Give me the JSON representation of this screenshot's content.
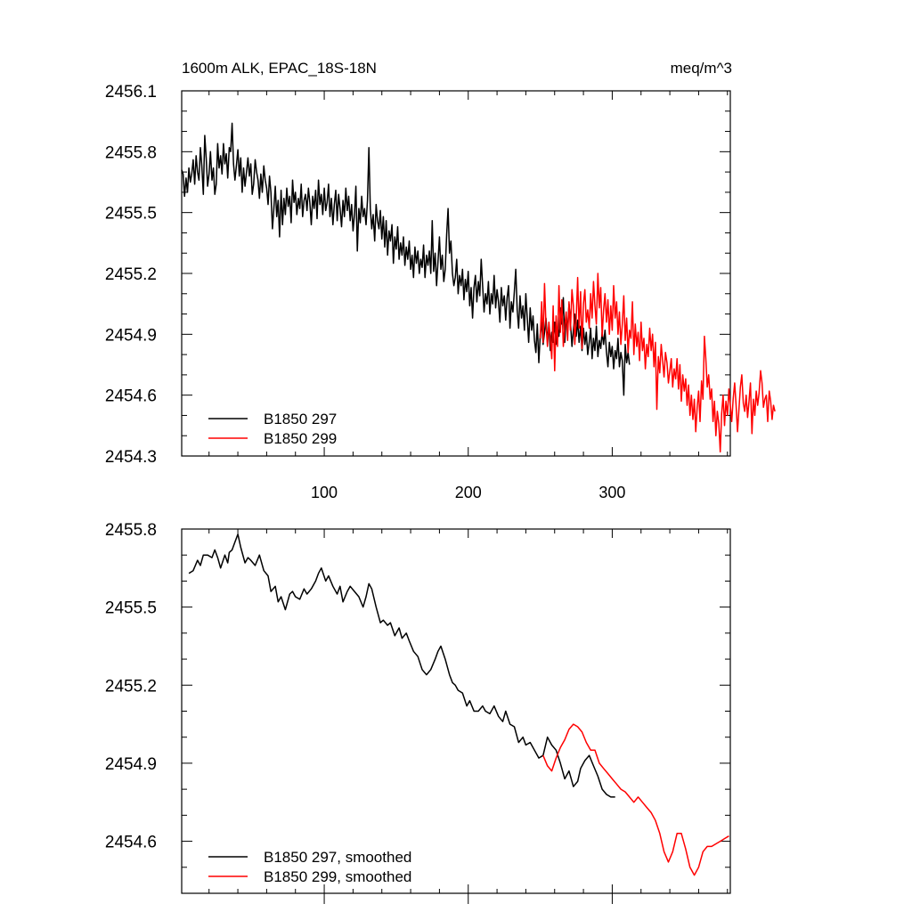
{
  "charts": [
    {
      "title_left": "1600m ALK, EPAC_18S-18N",
      "title_right": "meq/m^3",
      "chart_data": {
        "type": "line",
        "xlim": [
          1,
          382
        ],
        "ylim": [
          2454.3,
          2456.1
        ],
        "x_ticks": [
          100,
          200,
          300
        ],
        "y_ticks": [
          2454.3,
          2454.6,
          2454.9,
          2455.2,
          2455.5,
          2455.8,
          2456.1
        ],
        "legend_position": "bottom-left",
        "series": [
          {
            "name": "B1850 297",
            "color": "#000000",
            "x_start": 1,
            "values": [
              2455.71,
              2455.69,
              2455.58,
              2455.67,
              2455.6,
              2455.72,
              2455.65,
              2455.69,
              2455.76,
              2455.64,
              2455.78,
              2455.7,
              2455.66,
              2455.82,
              2455.73,
              2455.59,
              2455.88,
              2455.77,
              2455.63,
              2455.69,
              2455.8,
              2455.66,
              2455.72,
              2455.59,
              2455.64,
              2455.84,
              2455.72,
              2455.78,
              2455.69,
              2455.84,
              2455.74,
              2455.79,
              2455.67,
              2455.82,
              2455.8,
              2455.94,
              2455.74,
              2455.66,
              2455.73,
              2455.81,
              2455.68,
              2455.77,
              2455.6,
              2455.72,
              2455.63,
              2455.7,
              2455.77,
              2455.68,
              2455.74,
              2455.59,
              2455.64,
              2455.76,
              2455.7,
              2455.66,
              2455.57,
              2455.69,
              2455.6,
              2455.73,
              2455.66,
              2455.62,
              2455.54,
              2455.68,
              2455.6,
              2455.42,
              2455.52,
              2455.63,
              2455.48,
              2455.56,
              2455.38,
              2455.61,
              2455.44,
              2455.57,
              2455.49,
              2455.62,
              2455.53,
              2455.58,
              2455.45,
              2455.66,
              2455.55,
              2455.6,
              2455.49,
              2455.57,
              2455.52,
              2455.64,
              2455.48,
              2455.56,
              2455.59,
              2455.51,
              2455.62,
              2455.55,
              2455.44,
              2455.58,
              2455.52,
              2455.61,
              2455.47,
              2455.66,
              2455.54,
              2455.59,
              2455.49,
              2455.62,
              2455.51,
              2455.55,
              2455.64,
              2455.48,
              2455.57,
              2455.44,
              2455.54,
              2455.61,
              2455.46,
              2455.59,
              2455.52,
              2455.43,
              2455.56,
              2455.48,
              2455.62,
              2455.51,
              2455.58,
              2455.46,
              2455.54,
              2455.41,
              2455.49,
              2455.63,
              2455.31,
              2455.52,
              2455.45,
              2455.58,
              2455.48,
              2455.52,
              2455.44,
              2455.56,
              2455.82,
              2455.52,
              2455.42,
              2455.49,
              2455.36,
              2455.54,
              2455.46,
              2455.42,
              2455.51,
              2455.37,
              2455.48,
              2455.33,
              2455.46,
              2455.29,
              2455.41,
              2455.36,
              2455.44,
              2455.25,
              2455.38,
              2455.32,
              2455.43,
              2455.27,
              2455.35,
              2455.29,
              2455.38,
              2455.24,
              2455.33,
              2455.27,
              2455.36,
              2455.22,
              2455.29,
              2455.18,
              2455.33,
              2455.25,
              2455.31,
              2455.2,
              2455.27,
              2455.23,
              2455.34,
              2455.18,
              2455.29,
              2455.24,
              2455.31,
              2455.2,
              2455.46,
              2455.21,
              2455.3,
              2455.14,
              2455.26,
              2455.38,
              2455.22,
              2455.29,
              2455.16,
              2455.22,
              2455.39,
              2455.52,
              2455.3,
              2455.36,
              2455.2,
              2455.14,
              2455.18,
              2455.27,
              2455.1,
              2455.19,
              2455.14,
              2455.22,
              2455.07,
              2455.17,
              2455.11,
              2455.21,
              2455.04,
              2455.13,
              2454.98,
              2455.13,
              2455.19,
              2455.06,
              2455.16,
              2455.09,
              2455.27,
              2455.14,
              2455.01,
              2455.1,
              2455.05,
              2455.16,
              2455.0,
              2455.1,
              2455.05,
              2455.19,
              2455.03,
              2455.12,
              2455.06,
              2454.96,
              2455.13,
              2455.04,
              2455.09,
              2454.97,
              2455.08,
              2455.14,
              2454.93,
              2455.06,
              2455.01,
              2455.11,
              2455.22,
              2455.02,
              2454.93,
              2455.09,
              2454.98,
              2455.04,
              2454.92,
              2455.1,
              2454.98,
              2454.86,
              2455.03,
              2454.92,
              2454.99,
              2454.87,
              2454.81,
              2454.95,
              2454.76,
              2454.9,
              2454.96,
              2454.85,
              2454.91,
              2454.98,
              2454.87,
              2454.94,
              2454.82,
              2454.91,
              2454.86,
              2454.96,
              2454.85,
              2454.93,
              2454.89,
              2455.03,
              2454.95,
              2455.08,
              2454.86,
              2454.99,
              2454.92,
              2455.05,
              2454.96,
              2454.84,
              2454.92,
              2455.0,
              2454.89,
              2454.97,
              2454.86,
              2454.94,
              2454.82,
              2454.93,
              2454.85,
              2454.91,
              2454.8,
              2454.86,
              2454.93,
              2454.78,
              2454.88,
              2454.82,
              2454.94,
              2454.79,
              2454.87,
              2454.83,
              2454.91,
              2454.85,
              2454.92,
              2454.81,
              2454.74,
              2454.86,
              2454.79,
              2454.84,
              2454.73,
              2454.82,
              2454.78,
              2454.88,
              2454.74,
              2454.81,
              2454.77,
              2454.6,
              2454.85,
              2454.76,
              2454.81,
              2454.75
            ]
          },
          {
            "name": "B1850 299",
            "color": "#ff0000",
            "x_start": 250,
            "values": [
              2454.88,
              2455.06,
              2454.86,
              2455.15,
              2454.95,
              2454.84,
              2454.96,
              2454.88,
              2454.78,
              2455.04,
              2454.72,
              2454.99,
              2454.84,
              2455.14,
              2454.91,
              2455.07,
              2454.84,
              2454.94,
              2455.01,
              2454.87,
              2455.06,
              2454.92,
              2455.12,
              2455.04,
              2454.85,
              2454.98,
              2455.18,
              2454.93,
              2455.11,
              2454.83,
              2455.05,
              2455.12,
              2454.96,
              2455.02,
              2454.93,
              2455.1,
              2454.98,
              2455.16,
              2455.04,
              2454.95,
              2455.2,
              2455.03,
              2455.13,
              2454.89,
              2455.02,
              2455.1,
              2454.96,
              2455.07,
              2454.9,
              2455.04,
              2454.92,
              2455.14,
              2454.98,
              2455.06,
              2454.9,
              2455.01,
              2454.85,
              2454.95,
              2455.09,
              2454.87,
              2454.98,
              2454.81,
              2454.92,
              2454.88,
              2455.06,
              2454.8,
              2454.95,
              2454.84,
              2454.91,
              2454.77,
              2454.96,
              2454.82,
              2454.88,
              2454.73,
              2454.85,
              2454.79,
              2454.93,
              2454.82,
              2454.9,
              2454.74,
              2454.86,
              2454.53,
              2454.79,
              2454.71,
              2454.85,
              2454.77,
              2454.69,
              2454.81,
              2454.76,
              2454.66,
              2454.72,
              2454.78,
              2454.64,
              2454.73,
              2454.68,
              2454.78,
              2454.63,
              2454.75,
              2454.57,
              2454.7,
              2454.62,
              2454.68,
              2454.55,
              2454.65,
              2454.5,
              2454.6,
              2454.48,
              2454.58,
              2454.42,
              2454.54,
              2454.62,
              2454.47,
              2454.67,
              2454.58,
              2454.89,
              2454.78,
              2454.64,
              2454.7,
              2454.58,
              2454.63,
              2454.47,
              2454.57,
              2454.4,
              2454.52,
              2454.46,
              2454.32,
              2454.51,
              2454.6,
              2454.45,
              2454.57,
              2454.5,
              2454.63,
              2454.55,
              2454.47,
              2454.58,
              2454.66,
              2454.55,
              2454.42,
              2454.53,
              2454.64,
              2454.7,
              2454.56,
              2454.52,
              2454.6,
              2454.49,
              2454.57,
              2454.66,
              2454.41,
              2454.58,
              2454.5,
              2454.62,
              2454.55,
              2454.61,
              2454.72,
              2454.66,
              2454.54,
              2454.58,
              2454.6,
              2454.47,
              2454.62,
              2454.57,
              2454.48,
              2454.55,
              2454.52
            ]
          }
        ]
      }
    },
    {
      "title_left": "",
      "title_right": "",
      "chart_data": {
        "type": "line",
        "xlim": [
          1,
          382
        ],
        "ylim": [
          2454.4,
          2455.8
        ],
        "x_ticks": [
          100,
          200,
          300
        ],
        "y_ticks": [
          2454.6,
          2454.9,
          2455.2,
          2455.5,
          2455.8
        ],
        "legend_position": "bottom-left",
        "series": [
          {
            "name": "B1850 297, smoothed",
            "color": "#000000",
            "x": [
              6,
              9,
              12,
              14,
              16,
              19,
              22,
              24,
              26,
              28,
              31,
              33,
              34,
              36,
              38,
              40,
              42,
              45,
              47,
              49,
              52,
              55,
              58,
              61,
              63,
              66,
              68,
              70,
              73,
              76,
              78,
              80,
              83,
              86,
              88,
              91,
              94,
              96,
              98,
              101,
              103,
              106,
              109,
              111,
              113,
              116,
              118,
              121,
              124,
              127,
              129,
              131,
              133,
              136,
              139,
              141,
              144,
              146,
              149,
              152,
              154,
              157,
              159,
              162,
              165,
              168,
              171,
              174,
              177,
              179,
              181,
              184,
              187,
              189,
              191,
              193,
              196,
              199,
              201,
              204,
              207,
              210,
              212,
              215,
              218,
              221,
              224,
              226,
              229,
              232,
              235,
              238,
              240,
              243,
              246,
              249,
              252,
              255,
              258,
              261,
              264,
              267,
              270,
              273,
              276,
              278,
              281,
              284,
              287,
              290,
              293,
              296,
              299,
              302
            ],
            "values": [
              2455.63,
              2455.64,
              2455.68,
              2455.66,
              2455.7,
              2455.7,
              2455.69,
              2455.72,
              2455.69,
              2455.65,
              2455.7,
              2455.67,
              2455.71,
              2455.72,
              2455.75,
              2455.78,
              2455.73,
              2455.67,
              2455.69,
              2455.68,
              2455.66,
              2455.7,
              2455.64,
              2455.62,
              2455.56,
              2455.58,
              2455.52,
              2455.54,
              2455.49,
              2455.55,
              2455.56,
              2455.54,
              2455.53,
              2455.57,
              2455.55,
              2455.57,
              2455.6,
              2455.63,
              2455.65,
              2455.6,
              2455.62,
              2455.58,
              2455.55,
              2455.58,
              2455.52,
              2455.56,
              2455.58,
              2455.56,
              2455.54,
              2455.5,
              2455.54,
              2455.59,
              2455.57,
              2455.5,
              2455.44,
              2455.45,
              2455.43,
              2455.44,
              2455.39,
              2455.42,
              2455.38,
              2455.4,
              2455.37,
              2455.33,
              2455.31,
              2455.26,
              2455.24,
              2455.26,
              2455.3,
              2455.33,
              2455.35,
              2455.3,
              2455.24,
              2455.21,
              2455.2,
              2455.18,
              2455.17,
              2455.12,
              2455.14,
              2455.1,
              2455.1,
              2455.12,
              2455.1,
              2455.09,
              2455.12,
              2455.08,
              2455.06,
              2455.1,
              2455.05,
              2455.04,
              2454.98,
              2455.0,
              2454.97,
              2454.98,
              2454.95,
              2454.92,
              2454.93,
              2455.0,
              2454.97,
              2454.95,
              2454.9,
              2454.84,
              2454.87,
              2454.81,
              2454.83,
              2454.88,
              2454.91,
              2454.93,
              2454.89,
              2454.85,
              2454.8,
              2454.78,
              2454.77,
              2454.77
            ]
          },
          {
            "name": "B1850 299, smoothed",
            "color": "#ff0000",
            "x": [
              252,
              255,
              258,
              261,
              264,
              267,
              270,
              273,
              276,
              279,
              282,
              285,
              288,
              291,
              294,
              297,
              300,
              303,
              306,
              309,
              312,
              315,
              318,
              321,
              324,
              327,
              330,
              333,
              336,
              339,
              342,
              345,
              348,
              351,
              354,
              357,
              360,
              363,
              366,
              369,
              372,
              375,
              378,
              381
            ],
            "values": [
              2454.93,
              2454.89,
              2454.87,
              2454.92,
              2454.96,
              2454.99,
              2455.03,
              2455.05,
              2455.04,
              2455.02,
              2454.98,
              2454.95,
              2454.95,
              2454.9,
              2454.88,
              2454.86,
              2454.84,
              2454.82,
              2454.8,
              2454.79,
              2454.77,
              2454.75,
              2454.77,
              2454.75,
              2454.73,
              2454.71,
              2454.68,
              2454.63,
              2454.56,
              2454.52,
              2454.56,
              2454.63,
              2454.63,
              2454.57,
              2454.5,
              2454.47,
              2454.5,
              2454.56,
              2454.58,
              2454.58,
              2454.59,
              2454.6,
              2454.61,
              2454.62
            ]
          }
        ]
      }
    }
  ]
}
